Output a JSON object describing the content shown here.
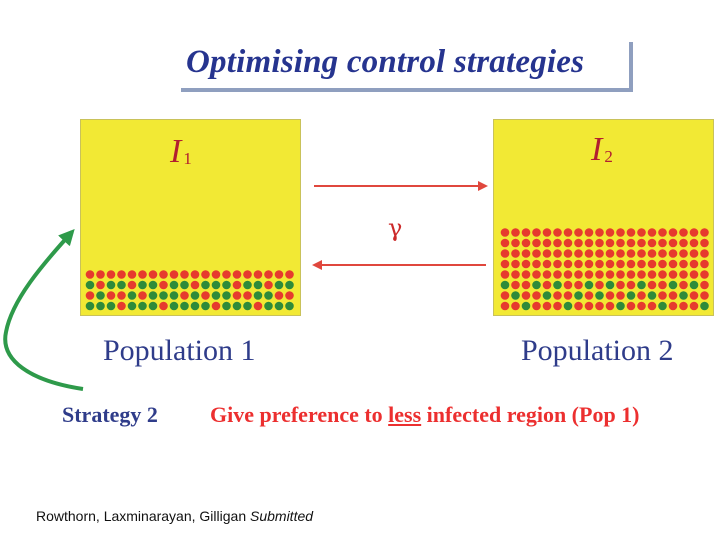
{
  "title": "Optimising control strategies",
  "population_1": {
    "infected_label": "I",
    "infected_subscript": "1",
    "label": "Population  1",
    "dot_rows": [
      [
        "r",
        "r",
        "r",
        "r",
        "r",
        "r",
        "r",
        "r",
        "r",
        "r",
        "r",
        "r",
        "r",
        "r",
        "r",
        "r",
        "r",
        "r",
        "r",
        "r"
      ],
      [
        "g",
        "r",
        "g",
        "g",
        "r",
        "g",
        "g",
        "r",
        "g",
        "g",
        "r",
        "g",
        "g",
        "g",
        "r",
        "g",
        "g",
        "r",
        "g",
        "g"
      ],
      [
        "r",
        "g",
        "r",
        "r",
        "g",
        "r",
        "g",
        "g",
        "g",
        "r",
        "g",
        "r",
        "g",
        "g",
        "r",
        "r",
        "g",
        "g",
        "r",
        "r"
      ],
      [
        "g",
        "g",
        "g",
        "r",
        "g",
        "g",
        "g",
        "r",
        "g",
        "g",
        "g",
        "g",
        "r",
        "g",
        "g",
        "g",
        "r",
        "g",
        "g",
        "g"
      ]
    ]
  },
  "population_2": {
    "infected_label": "I",
    "infected_subscript": "2",
    "label": "Population 2",
    "dot_rows": [
      [
        "r",
        "r",
        "r",
        "r",
        "r",
        "r",
        "r",
        "r",
        "r",
        "r",
        "r",
        "r",
        "r",
        "r",
        "r",
        "r",
        "r",
        "r",
        "r",
        "r"
      ],
      [
        "r",
        "r",
        "r",
        "r",
        "r",
        "r",
        "r",
        "r",
        "r",
        "r",
        "r",
        "r",
        "r",
        "r",
        "r",
        "r",
        "r",
        "r",
        "r",
        "r"
      ],
      [
        "r",
        "r",
        "r",
        "r",
        "r",
        "r",
        "r",
        "r",
        "r",
        "r",
        "r",
        "r",
        "r",
        "r",
        "r",
        "r",
        "r",
        "r",
        "r",
        "r"
      ],
      [
        "r",
        "r",
        "r",
        "r",
        "r",
        "r",
        "r",
        "r",
        "r",
        "r",
        "r",
        "r",
        "r",
        "r",
        "r",
        "r",
        "r",
        "r",
        "r",
        "r"
      ],
      [
        "r",
        "r",
        "r",
        "r",
        "r",
        "r",
        "r",
        "r",
        "r",
        "r",
        "r",
        "r",
        "r",
        "r",
        "r",
        "r",
        "r",
        "r",
        "r",
        "r"
      ],
      [
        "g",
        "r",
        "r",
        "g",
        "r",
        "g",
        "r",
        "r",
        "g",
        "r",
        "g",
        "r",
        "r",
        "g",
        "r",
        "r",
        "g",
        "r",
        "g",
        "r"
      ],
      [
        "r",
        "g",
        "r",
        "r",
        "g",
        "r",
        "r",
        "g",
        "r",
        "g",
        "r",
        "r",
        "g",
        "r",
        "g",
        "r",
        "r",
        "g",
        "r",
        "r"
      ],
      [
        "r",
        "r",
        "g",
        "r",
        "r",
        "r",
        "g",
        "r",
        "r",
        "r",
        "r",
        "g",
        "r",
        "r",
        "r",
        "g",
        "r",
        "r",
        "r",
        "g"
      ]
    ]
  },
  "transfer_rate": "γ",
  "strategy": {
    "name": "Strategy 2",
    "desc_before": "Give preference to ",
    "desc_emphasis": "less",
    "desc_after": " infected region (Pop 1)"
  },
  "citation": {
    "authors": "Rowthorn, Laxminarayan, Gilligan",
    "status": "Submitted"
  },
  "colors": {
    "title": "#26348f",
    "panel": "#f2e934",
    "infected_dot": "#e63a2e",
    "susceptible_dot": "#2e8b3a",
    "arrow_red": "#e0473d",
    "curve_green": "#2e9a4a",
    "label_blue": "#2f3c8a"
  }
}
